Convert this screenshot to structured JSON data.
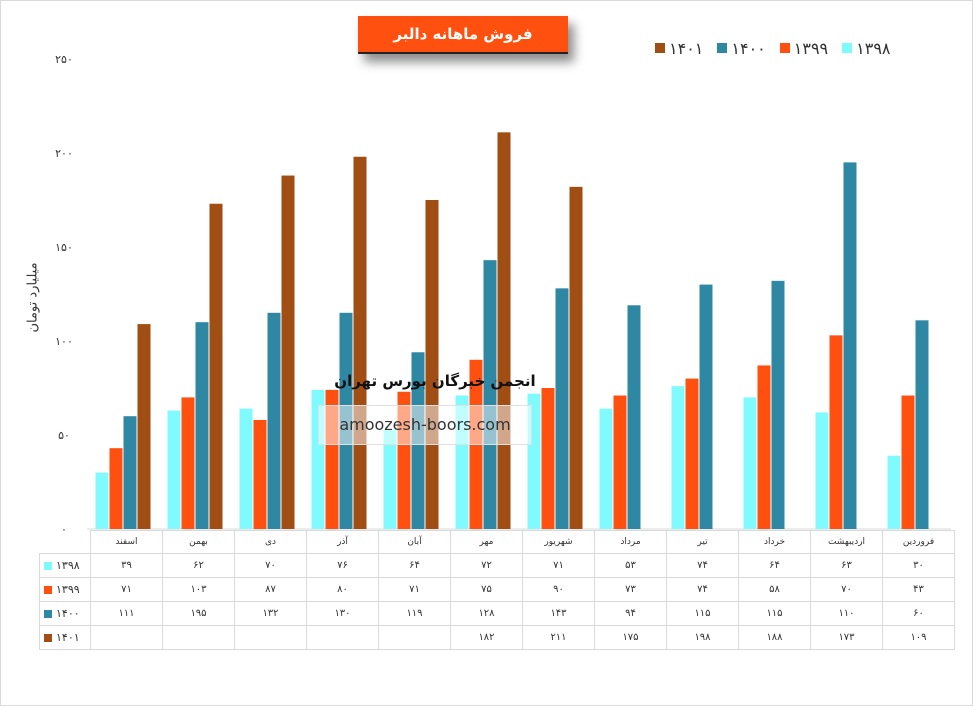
{
  "chart_data": {
    "type": "bar",
    "title": "فروش ماهانه دالبر",
    "ylabel": "میلیارد تومان",
    "ylim": [
      0,
      250
    ],
    "yticks": [
      "۰",
      "۵۰",
      "۱۰۰",
      "۱۵۰",
      "۲۰۰",
      "۲۵۰"
    ],
    "categories": [
      "فروردین",
      "اردیبهشت",
      "خرداد",
      "تیر",
      "مرداد",
      "شهریور",
      "مهر",
      "آبان",
      "آذر",
      "دی",
      "بهمن",
      "اسفند"
    ],
    "legend_position": "top-right",
    "series": [
      {
        "name": "۱۳۹۸",
        "color": "#7ffbff",
        "values": [
          30,
          63,
          64,
          74,
          53,
          71,
          72,
          64,
          76,
          70,
          62,
          39
        ],
        "labels": [
          "۳۰",
          "۶۳",
          "۶۴",
          "۷۴",
          "۵۳",
          "۷۱",
          "۷۲",
          "۶۴",
          "۷۶",
          "۷۰",
          "۶۲",
          "۳۹"
        ]
      },
      {
        "name": "۱۳۹۹",
        "color": "#ff5010",
        "values": [
          43,
          70,
          58,
          74,
          73,
          90,
          75,
          71,
          80,
          87,
          103,
          71
        ],
        "labels": [
          "۴۳",
          "۷۰",
          "۵۸",
          "۷۴",
          "۷۳",
          "۹۰",
          "۷۵",
          "۷۱",
          "۸۰",
          "۸۷",
          "۱۰۳",
          "۷۱"
        ]
      },
      {
        "name": "۱۴۰۰",
        "color": "#2e87a3",
        "values": [
          60,
          110,
          115,
          115,
          94,
          143,
          128,
          119,
          130,
          132,
          195,
          111
        ],
        "labels": [
          "۶۰",
          "۱۱۰",
          "۱۱۵",
          "۱۱۵",
          "۹۴",
          "۱۴۳",
          "۱۲۸",
          "۱۱۹",
          "۱۳۰",
          "۱۳۲",
          "۱۹۵",
          "۱۱۱"
        ]
      },
      {
        "name": "۱۴۰۱",
        "color": "#a04e14",
        "values": [
          109,
          173,
          188,
          198,
          175,
          211,
          182,
          null,
          null,
          null,
          null,
          null
        ],
        "labels": [
          "۱۰۹",
          "۱۷۳",
          "۱۸۸",
          "۱۹۸",
          "۱۷۵",
          "۲۱۱",
          "۱۸۲",
          "",
          "",
          "",
          "",
          ""
        ]
      }
    ]
  },
  "watermark": {
    "line1": "انجمن خبرگان بورس تهران",
    "line2": "amoozesh-boors.com"
  }
}
